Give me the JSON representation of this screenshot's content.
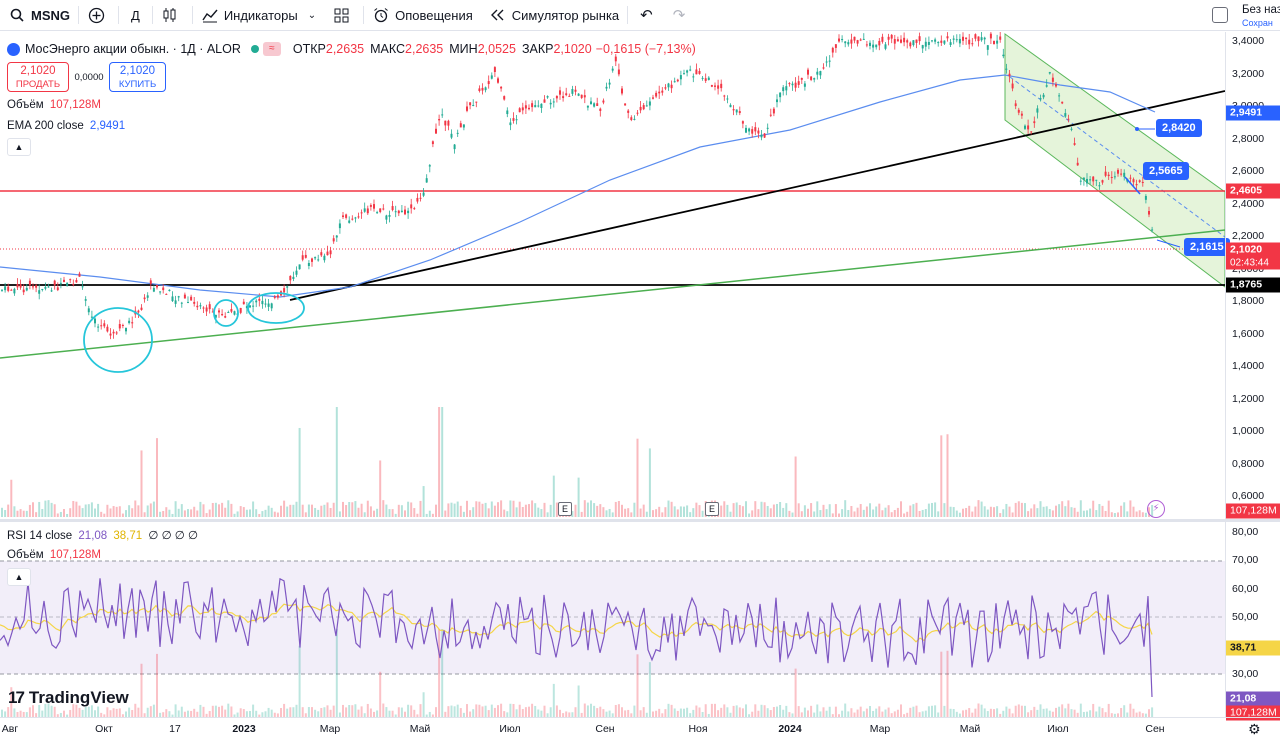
{
  "toolbar": {
    "symbol": "MSNG",
    "interval": "Д",
    "indicators_label": "Индикаторы",
    "alerts_label": "Оповещения",
    "replay_label": "Симулятор рынка",
    "right_title": "Без назв",
    "right_sub": "Сохран"
  },
  "legend": {
    "title": "МосЭнерго акции обыкн. · 1Д · ALOR",
    "open_k": "ОТКР",
    "open_v": "2,2635",
    "high_k": "МАКС",
    "high_v": "2,2635",
    "low_k": "МИН",
    "low_v": "2,0525",
    "close_k": "ЗАКР",
    "close_v": "2,1020",
    "change_v": "−0,1615 (−7,13%)",
    "sell_price": "2,1020",
    "sell_label": "ПРОДАТЬ",
    "spread": "0,0000",
    "buy_price": "2,1020",
    "buy_label": "КУПИТЬ",
    "volume_k": "Объём",
    "volume_v": "107,128M",
    "ema_k": "EMA 200 close",
    "ema_v": "2,9491",
    "rsi_k": "RSI 14 close",
    "rsi_v1": "21,08",
    "rsi_v2": "38,71",
    "rsi_rest": "∅ ∅ ∅ ∅",
    "rsi_vol_k": "Объём",
    "rsi_vol_v": "107,128M"
  },
  "brand": "TradingView",
  "price_scale": {
    "ticks": [
      "3,4000",
      "3,2000",
      "3,0000",
      "2,8000",
      "2,6000",
      "2,4000",
      "2,2000",
      "2,0000",
      "1,8000",
      "1,6000",
      "1,4000",
      "1,2000",
      "1,0000",
      "0,8000",
      "0,6000"
    ],
    "last_price": "2,1020",
    "countdown": "02:43:44",
    "ema_label": "2,9491",
    "red_line": "2,4605",
    "black_line": "1,8765",
    "volume_label": "107,128M"
  },
  "rsi_scale": {
    "ticks": [
      "80,00",
      "70,00",
      "60,00",
      "50,00",
      "40,00",
      "30,00"
    ],
    "ma_label": "38,71",
    "rsi_label": "21,08",
    "vol_label": "107,128M"
  },
  "chips": {
    "c1": "2,8420",
    "c2": "2,5665",
    "c3": "2,1615"
  },
  "time_scale": [
    "Авг",
    "Окт",
    "17",
    "2023",
    "Мар",
    "Май",
    "Июл",
    "Сен",
    "Ноя",
    "2024",
    "Мар",
    "Май",
    "Июл",
    "Сен"
  ],
  "colors": {
    "up": "#22ab94",
    "down": "#f23645",
    "ema": "#5b8def",
    "rsi": "#7e57c2",
    "rsi_ma": "#f5d547",
    "accent": "#2962ff"
  }
}
